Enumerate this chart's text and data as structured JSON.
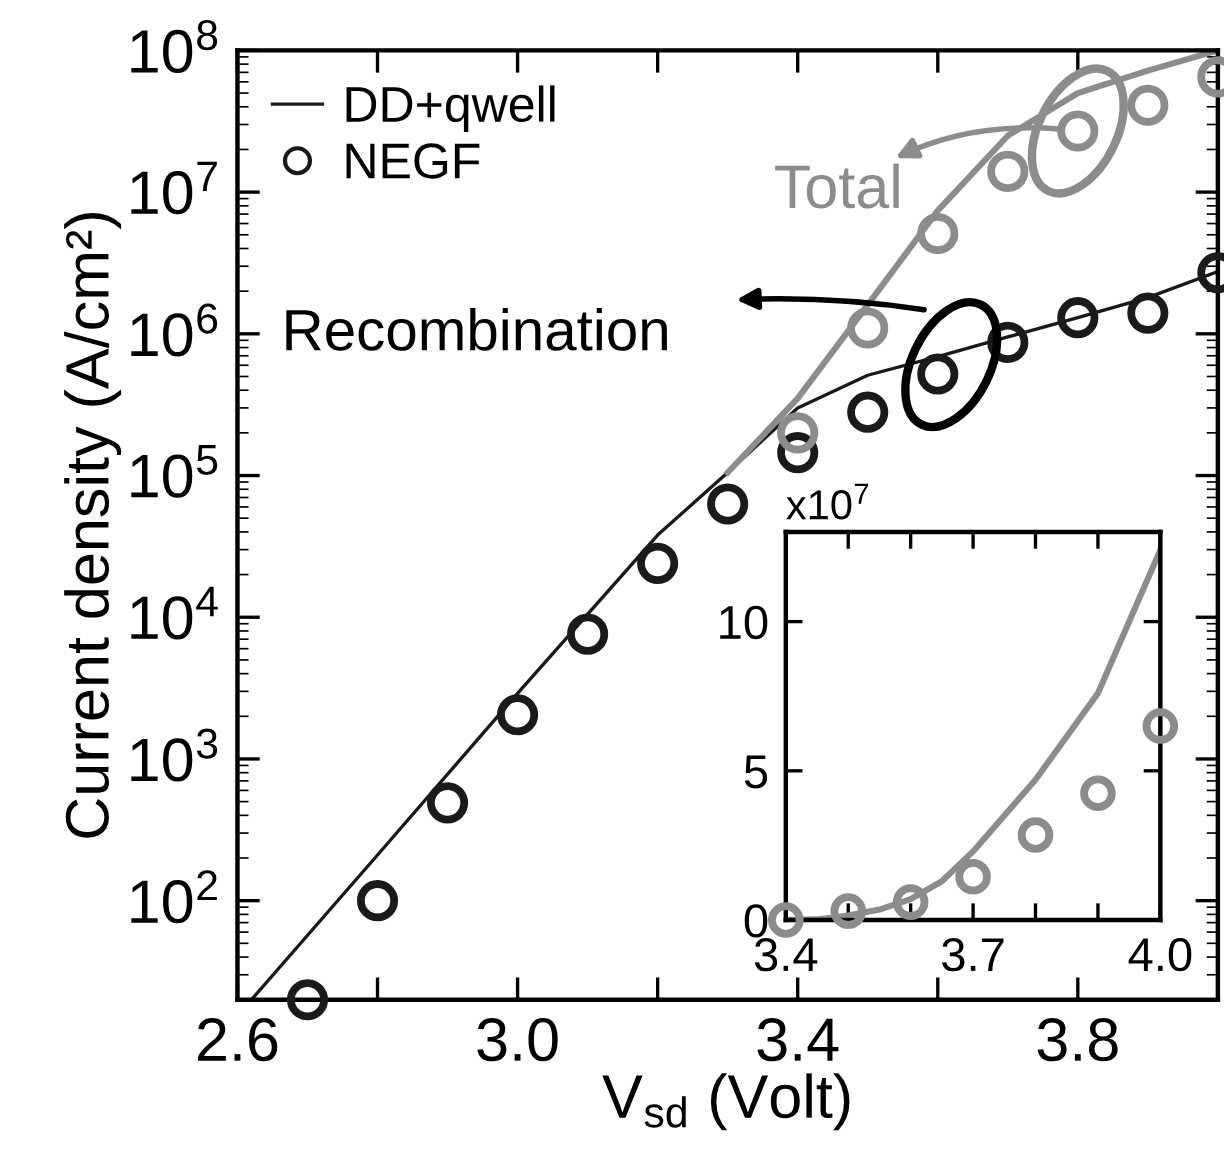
{
  "chart_data": [
    {
      "type": "line",
      "xlabel": "V$_{sd}$ (Volt)",
      "ylabel": "Current density (A/cm²)",
      "log": "y",
      "xlim": [
        2.6,
        4.0
      ],
      "xticks": [
        2.6,
        {
          "value": 2.8,
          "label": null
        },
        {
          "value": 3.0,
          "label": "3.0"
        },
        {
          "value": 3.2,
          "label": null
        },
        3.4,
        {
          "value": 3.6,
          "label": null
        },
        3.8
      ],
      "ylim": [
        20,
        100000000
      ],
      "yticks": [
        {
          "value": 100,
          "label": "10$^{2}$"
        },
        {
          "value": 1000,
          "label": "10$^{3}$"
        },
        {
          "value": 10000,
          "label": "10$^{4}$"
        },
        {
          "value": 100000,
          "label": "10$^{5}$"
        },
        {
          "value": 1000000,
          "label": "10$^{6}$"
        },
        {
          "value": 10000000,
          "label": "10$^{7}$"
        },
        {
          "value": 100000000,
          "label": "10$^{8}$"
        }
      ],
      "legend": "top left",
      "grid": false,
      "series": [
        {
          "name": "DD+qwell",
          "color": "#1a1a1a",
          "line_style": "solid",
          "x": [
            2.62,
            2.8,
            3.0,
            3.2,
            3.3,
            3.4,
            3.5,
            3.6,
            3.7,
            3.8,
            3.9,
            4.0
          ],
          "values": [
            20,
            210,
            2900,
            38000,
            105000,
            300000,
            510000,
            690000,
            950000,
            1300000,
            1800000,
            2750000
          ]
        },
        {
          "color": "#8c8c8c",
          "line_style": "solid",
          "x": [
            3.3,
            3.4,
            3.5,
            3.6,
            3.7,
            3.8,
            3.9,
            4.0
          ],
          "values": [
            105000,
            350000,
            1600000,
            7400000,
            25000000,
            50000000,
            72000000,
            100000000
          ]
        },
        {
          "name": "NEGF",
          "type": "scatter",
          "marker": "circle",
          "color": "#1a1a1a",
          "x": [
            2.7,
            2.8,
            2.9,
            3.0,
            3.1,
            3.2,
            3.3,
            3.4,
            3.5,
            3.6,
            3.7,
            3.8,
            3.9,
            4.0
          ],
          "values": [
            20,
            100,
            490,
            2050,
            7600,
            24000,
            63000,
            145000,
            280000,
            520000,
            870000,
            1300000,
            1400000,
            2700000
          ]
        },
        {
          "type": "scatter",
          "marker": "circle",
          "color": "#8c8c8c",
          "x": [
            3.4,
            3.5,
            3.6,
            3.7,
            3.8,
            3.9,
            4.0
          ],
          "values": [
            200000,
            1100000,
            5100000,
            14000000,
            27000000,
            41000000,
            65000000
          ]
        }
      ],
      "annotations": [
        {
          "text": "Total",
          "x": 3.8,
          "y": 27000000
        },
        "Recombination"
      ]
    },
    {
      "type": "line",
      "xlim": [
        3.4,
        4.0
      ],
      "xticks": [
        3.4,
        {
          "value": 3.5,
          "label": null
        },
        {
          "value": 3.6,
          "label": null
        },
        3.7,
        {
          "value": 3.8,
          "label": null
        },
        {
          "value": 3.9,
          "label": null
        },
        {
          "value": 4.0,
          "label": "4.0"
        }
      ],
      "ylim": [
        0,
        13
      ],
      "yticks": [
        0,
        5,
        10
      ],
      "grid": false,
      "series": [
        {
          "color": "#8c8c8c",
          "line_style": "solid",
          "x": [
            3.4,
            3.45,
            3.5,
            3.55,
            3.6,
            3.65,
            3.7,
            3.8,
            3.9,
            4.0
          ],
          "values": [
            0,
            0.02,
            0.15,
            0.35,
            0.7,
            1.3,
            2.3,
            4.7,
            7.6,
            12.4
          ]
        },
        {
          "type": "scatter",
          "marker": "circle",
          "color": "#8c8c8c",
          "x": [
            3.4,
            3.5,
            3.6,
            3.7,
            3.8,
            3.9,
            4.0
          ],
          "values": [
            0,
            0.3,
            0.6,
            1.45,
            2.85,
            4.25,
            6.5
          ]
        }
      ],
      "annotations": [
        "x10$^{7}$"
      ]
    }
  ]
}
